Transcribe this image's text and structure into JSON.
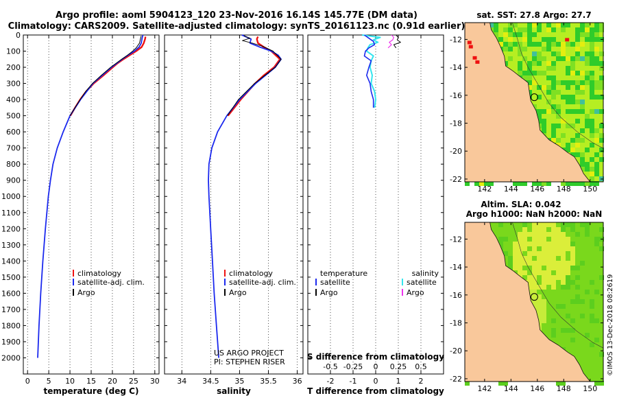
{
  "title_line1": "Argo profile: aoml 5904123_120 23-Nov-2016 16.14S 145.77E (DM data)",
  "title_line2": "Climatology: CARS2009. Satellite-adjusted climatology: synTS_20161123.nc (0.91d earlier)",
  "credit": "©IMOS 13-Dec-2018 08:2619",
  "colors": {
    "climatology": "#ee1111",
    "satellite": "#1a28ee",
    "argo": "#000000",
    "cyan": "#33e5ee",
    "magenta": "#ee33ee",
    "land": "#f9c89b",
    "coast": "#111111"
  },
  "chart_data": [
    {
      "type": "line",
      "id": "temperature",
      "xlabel": "temperature (deg C)",
      "ylabel": "",
      "xlim": [
        -1,
        31
      ],
      "ylim": [
        0,
        2100
      ],
      "xticks": [
        0,
        5,
        10,
        15,
        20,
        25,
        30
      ],
      "xtick_labels": [
        "0",
        "5",
        "10",
        "15",
        "20",
        "25",
        "30"
      ],
      "yticks": [
        0,
        100,
        200,
        300,
        400,
        500,
        600,
        700,
        800,
        900,
        1000,
        1100,
        1200,
        1300,
        1400,
        1500,
        1600,
        1700,
        1800,
        1900,
        2000
      ],
      "ytick_labels": [
        "0",
        "100",
        "200",
        "300",
        "400",
        "500",
        "600",
        "700",
        "800",
        "900",
        "1000",
        "1100",
        "1200",
        "1300",
        "1400",
        "1500",
        "1600",
        "1700",
        "1800",
        "1900",
        "2000"
      ],
      "legend": [
        "climatology",
        "satellite-adj. clim.",
        "Argo"
      ],
      "series": [
        {
          "name": "climatology",
          "depth": [
            10,
            25,
            50,
            75,
            100,
            125,
            150,
            175,
            200,
            225,
            250,
            300,
            350,
            400,
            450,
            500
          ],
          "x": [
            27.8,
            27.7,
            27.4,
            26.9,
            25.6,
            24.1,
            22.6,
            21.2,
            20.1,
            19.0,
            17.9,
            15.6,
            13.8,
            12.4,
            11.2,
            10.1
          ]
        },
        {
          "name": "satellite-adj. clim.",
          "depth": [
            0,
            20,
            50,
            75,
            100,
            125,
            150,
            200,
            250,
            300,
            400,
            500,
            600,
            700,
            800,
            900,
            1000,
            1200,
            1400,
            1600,
            1800,
            2000
          ],
          "x": [
            27.2,
            27.0,
            26.8,
            26.3,
            25.2,
            23.7,
            22.3,
            19.8,
            17.6,
            15.4,
            12.5,
            10.0,
            8.4,
            7.0,
            6.0,
            5.4,
            4.9,
            4.2,
            3.6,
            3.1,
            2.7,
            2.4
          ]
        },
        {
          "name": "Argo",
          "depth": [
            5,
            25,
            50,
            80,
            100,
            130,
            150,
            200,
            250,
            300,
            350,
            400,
            500
          ],
          "x": [
            26.8,
            26.6,
            26.4,
            25.6,
            24.8,
            23.3,
            22.2,
            19.6,
            17.4,
            15.3,
            13.7,
            12.4,
            10.0
          ]
        }
      ]
    },
    {
      "type": "line",
      "id": "salinity",
      "xlabel": "salinity",
      "ylabel": "",
      "xlim": [
        33.7,
        36.1
      ],
      "ylim": [
        0,
        2100
      ],
      "xticks": [
        34,
        34.5,
        35,
        35.5,
        36
      ],
      "xtick_labels": [
        "34",
        "34.5",
        "35",
        "35.5",
        "36"
      ],
      "legend": [
        "climatology",
        "satellite-adj. clim.",
        "Argo"
      ],
      "series": [
        {
          "name": "climatology",
          "depth": [
            10,
            25,
            50,
            75,
            100,
            150,
            200,
            250,
            300,
            400,
            500
          ],
          "x": [
            35.32,
            35.3,
            35.32,
            35.42,
            35.55,
            35.7,
            35.6,
            35.42,
            35.27,
            35.02,
            34.8
          ]
        },
        {
          "name": "satellite-adj. clim.",
          "depth": [
            0,
            25,
            50,
            75,
            100,
            125,
            150,
            200,
            250,
            300,
            400,
            500,
            600,
            700,
            800,
            900,
            1000,
            1200,
            1400,
            1600,
            1800,
            2000
          ],
          "x": [
            35.04,
            35.2,
            35.18,
            35.35,
            35.55,
            35.67,
            35.72,
            35.62,
            35.45,
            35.28,
            35.0,
            34.78,
            34.62,
            34.52,
            34.47,
            34.46,
            34.47,
            34.5,
            34.53,
            34.56,
            34.6,
            34.64
          ]
        },
        {
          "name": "Argo",
          "depth": [
            5,
            20,
            35,
            50,
            70,
            100,
            150,
            200,
            250,
            300,
            400,
            500
          ],
          "x": [
            35.08,
            35.18,
            35.05,
            35.22,
            35.4,
            35.58,
            35.72,
            35.62,
            35.44,
            35.26,
            34.98,
            34.79
          ]
        }
      ],
      "annotation": [
        "US ARGO PROJECT",
        "PI: STEPHEN RISER"
      ]
    },
    {
      "type": "line",
      "id": "difference",
      "xlabel": "T difference from climatology",
      "top_label": "S difference from climatology",
      "xlim": [
        -3,
        3
      ],
      "ylim": [
        0,
        2100
      ],
      "xticks": [
        -2,
        -1,
        0,
        1,
        2
      ],
      "xtick_labels": [
        "-2",
        "-1",
        "0",
        "1",
        "2"
      ],
      "top_xtick_labels": [
        "-0.5",
        "-0.25",
        "0",
        "0.25",
        "0.5"
      ],
      "legend_left": [
        "temperature",
        "satellite",
        "Argo"
      ],
      "legend_right": [
        "salinity",
        "satellite",
        "Argo"
      ],
      "series": [
        {
          "name": "T satellite",
          "depth": [
            0,
            20,
            40,
            60,
            80,
            100,
            130,
            160,
            200,
            250,
            300,
            350,
            400,
            450
          ],
          "x": [
            -0.5,
            -0.3,
            -0.1,
            -0.05,
            -0.3,
            -0.45,
            -0.5,
            -0.2,
            -0.3,
            -0.4,
            -0.25,
            -0.2,
            -0.1,
            -0.1
          ]
        },
        {
          "name": "S satellite",
          "depth": [
            0,
            15,
            30,
            45,
            60,
            80,
            100,
            130,
            160,
            200,
            250,
            300,
            350,
            400,
            450
          ],
          "x": [
            -0.6,
            0.2,
            -0.1,
            0.1,
            -0.25,
            -0.35,
            -0.4,
            -0.1,
            -0.2,
            -0.25,
            -0.15,
            -0.2,
            -0.05,
            0.0,
            -0.05
          ]
        },
        {
          "name": "T Argo",
          "depth": [
            0,
            15,
            30,
            45,
            60,
            80
          ],
          "x": [
            0.9,
            1.0,
            0.95,
            1.1,
            0.8,
            0.9
          ]
        },
        {
          "name": "S Argo",
          "depth": [
            0,
            15,
            30,
            45,
            60,
            80
          ],
          "x": [
            0.7,
            0.8,
            0.75,
            0.6,
            0.7,
            0.55
          ]
        }
      ]
    },
    {
      "type": "heatmap",
      "id": "sst-map",
      "title": "sat. SST: 27.8 Argo: 27.7",
      "xlim": [
        140.5,
        151
      ],
      "ylim": [
        -22.2,
        -10.8
      ],
      "xticks": [
        142,
        144,
        146,
        148,
        150
      ],
      "xtick_labels": [
        "142",
        "144",
        "146",
        "148",
        "150"
      ],
      "yticks": [
        -12,
        -14,
        -16,
        -18,
        -20,
        -22
      ],
      "ytick_labels": [
        "-12",
        "-14",
        "-16",
        "-18",
        "-20",
        "-22"
      ],
      "argo_position": [
        145.77,
        -16.14
      ]
    },
    {
      "type": "heatmap",
      "id": "sla-map",
      "title_line1": "Altim. SLA: 0.042",
      "title_line2": "Argo h1000: NaN h2000: NaN",
      "xlim": [
        140.5,
        151
      ],
      "ylim": [
        -22.2,
        -10.8
      ],
      "xticks": [
        142,
        144,
        146,
        148,
        150
      ],
      "xtick_labels": [
        "142",
        "144",
        "146",
        "148",
        "150"
      ],
      "yticks": [
        -12,
        -14,
        -16,
        -18,
        -20,
        -22
      ],
      "ytick_labels": [
        "-12",
        "-14",
        "-16",
        "-18",
        "-20",
        "-22"
      ],
      "argo_position": [
        145.77,
        -16.14
      ]
    }
  ]
}
